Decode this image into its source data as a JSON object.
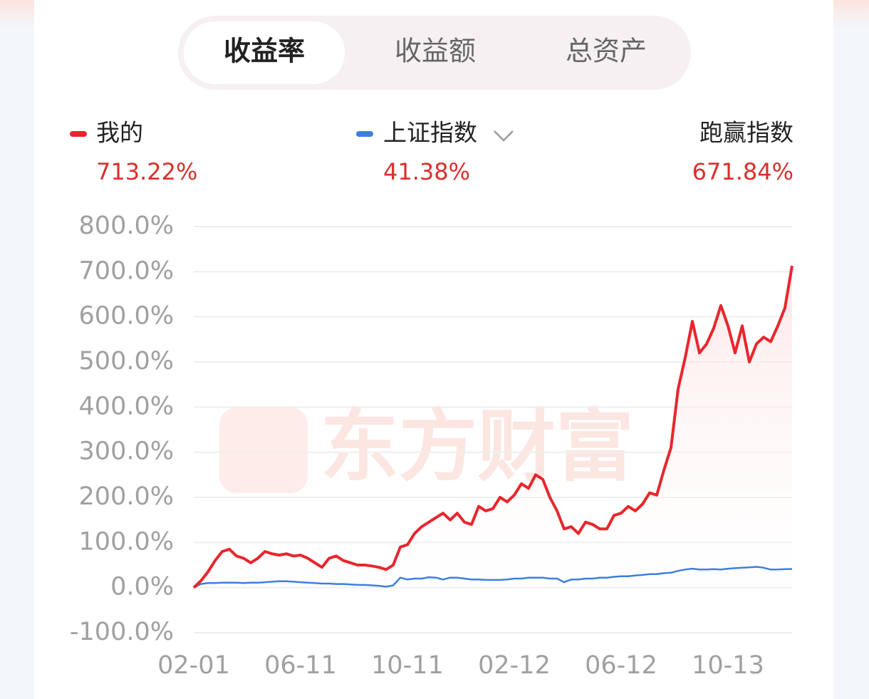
{
  "tabs": [
    "收益率",
    "收益额",
    "总资产"
  ],
  "active_tab": 0,
  "chart_data": {
    "type": "line",
    "watermark": "东方财富",
    "outperform": {
      "label": "跑赢指数",
      "value": "671.84%"
    },
    "categories": [
      "02-01",
      null,
      null,
      null,
      null,
      null,
      null,
      null,
      null,
      null,
      null,
      null,
      null,
      null,
      null,
      "06-11",
      null,
      null,
      null,
      null,
      null,
      null,
      null,
      null,
      null,
      null,
      null,
      null,
      null,
      null,
      "10-11",
      null,
      null,
      null,
      null,
      null,
      null,
      null,
      null,
      null,
      null,
      null,
      null,
      null,
      null,
      "02-12",
      null,
      null,
      null,
      null,
      null,
      null,
      null,
      null,
      null,
      null,
      null,
      null,
      null,
      null,
      "06-12",
      null,
      null,
      null,
      null,
      null,
      null,
      null,
      null,
      null,
      null,
      null,
      null,
      null,
      null,
      "10-13",
      null,
      null,
      null,
      null,
      null,
      null,
      null,
      null,
      null
    ],
    "series": [
      {
        "name": "我的",
        "total": "713.22%",
        "color": "#e8262d",
        "values": [
          0,
          15,
          35,
          60,
          80,
          85,
          70,
          65,
          55,
          65,
          80,
          75,
          72,
          75,
          70,
          72,
          65,
          55,
          45,
          65,
          70,
          60,
          55,
          50,
          50,
          48,
          45,
          40,
          50,
          90,
          95,
          120,
          135,
          145,
          155,
          165,
          150,
          165,
          145,
          140,
          180,
          170,
          175,
          200,
          190,
          205,
          230,
          220,
          250,
          240,
          200,
          170,
          130,
          135,
          120,
          145,
          140,
          130,
          130,
          160,
          165,
          180,
          170,
          185,
          210,
          205,
          260,
          310,
          440,
          510,
          590,
          520,
          540,
          575,
          625,
          580,
          520,
          580,
          500,
          540,
          555,
          545,
          580,
          620,
          713.22
        ]
      },
      {
        "name": "上证指数",
        "total": "41.38%",
        "color": "#3d7fe0",
        "values": [
          0,
          8,
          10,
          10,
          11,
          11,
          11,
          10,
          11,
          11,
          12,
          13,
          14,
          14,
          13,
          12,
          11,
          10,
          9,
          9,
          8,
          8,
          7,
          6,
          6,
          5,
          4,
          2,
          5,
          22,
          18,
          20,
          20,
          23,
          22,
          18,
          22,
          22,
          20,
          18,
          18,
          17,
          17,
          17,
          18,
          20,
          20,
          22,
          22,
          22,
          20,
          20,
          12,
          18,
          18,
          20,
          20,
          22,
          22,
          24,
          25,
          25,
          27,
          28,
          30,
          30,
          32,
          33,
          37,
          40,
          42,
          40,
          40,
          41,
          40,
          42,
          43,
          44,
          45,
          46,
          44,
          40,
          40,
          41,
          41.38
        ]
      }
    ],
    "ylim": [
      -100,
      800
    ],
    "yticks": [
      {
        "value": -100,
        "label": "-100.0%"
      },
      {
        "value": 0,
        "label": "0.0%"
      },
      {
        "value": 100,
        "label": "100.0%"
      },
      {
        "value": 200,
        "label": "200.0%"
      },
      {
        "value": 300,
        "label": "300.0%"
      },
      {
        "value": 400,
        "label": "400.0%"
      },
      {
        "value": 500,
        "label": "500.0%"
      },
      {
        "value": 600,
        "label": "600.0%"
      },
      {
        "value": 700,
        "label": "700.0%"
      },
      {
        "value": 800,
        "label": "800.0%"
      }
    ],
    "grid": true
  }
}
